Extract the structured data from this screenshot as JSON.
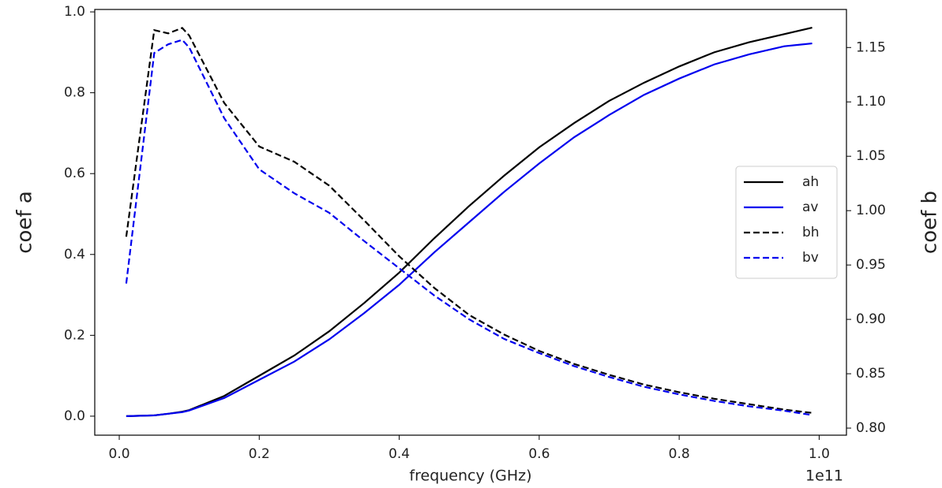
{
  "chart_data": {
    "type": "line",
    "x_label": "frequency (GHz)",
    "x_offset_label": "1e11",
    "y_label": "coef a",
    "y2_label": "coef b",
    "x": [
      0.01,
      0.05,
      0.07,
      0.09,
      0.1,
      0.15,
      0.2,
      0.25,
      0.3,
      0.35,
      0.4,
      0.45,
      0.5,
      0.55,
      0.6,
      0.65,
      0.7,
      0.75,
      0.8,
      0.85,
      0.9,
      0.95,
      0.99
    ],
    "series": [
      {
        "name": "ah",
        "color": "#000000",
        "style": "solid",
        "values": [
          0,
          0.002,
          0.006,
          0.011,
          0.015,
          0.05,
          0.1,
          0.15,
          0.21,
          0.28,
          0.355,
          0.44,
          0.52,
          0.595,
          0.665,
          0.725,
          0.78,
          0.825,
          0.865,
          0.9,
          0.925,
          0.945,
          0.961
        ]
      },
      {
        "name": "av",
        "color": "#0000ee",
        "style": "solid",
        "values": [
          0,
          0.002,
          0.006,
          0.01,
          0.014,
          0.045,
          0.09,
          0.135,
          0.19,
          0.255,
          0.325,
          0.405,
          0.48,
          0.555,
          0.625,
          0.69,
          0.745,
          0.795,
          0.835,
          0.87,
          0.895,
          0.915,
          0.922
        ]
      },
      {
        "name": "bh",
        "color": "#000000",
        "style": "dashed",
        "axis": "y2",
        "values": [
          0.976,
          1.166,
          1.163,
          1.168,
          1.161,
          1.099,
          1.059,
          1.045,
          1.023,
          0.991,
          0.958,
          0.929,
          0.904,
          0.886,
          0.871,
          0.859,
          0.849,
          0.84,
          0.833,
          0.827,
          0.822,
          0.817,
          0.814
        ]
      },
      {
        "name": "bv",
        "color": "#0000ee",
        "style": "dashed",
        "axis": "y2",
        "values": [
          0.933,
          1.145,
          1.153,
          1.157,
          1.15,
          1.085,
          1.038,
          1.016,
          0.998,
          0.972,
          0.947,
          0.922,
          0.9,
          0.882,
          0.869,
          0.857,
          0.847,
          0.838,
          0.831,
          0.825,
          0.82,
          0.816,
          0.812
        ]
      }
    ],
    "xlim": [
      -0.035,
      1.039
    ],
    "xticks": [
      {
        "value": 0,
        "label": "0.0"
      },
      {
        "value": 0.2,
        "label": "0.2"
      },
      {
        "value": 0.4,
        "label": "0.4"
      },
      {
        "value": 0.6,
        "label": "0.6"
      },
      {
        "value": 0.8,
        "label": "0.8"
      },
      {
        "value": 1,
        "label": "1.0"
      }
    ],
    "ylim": [
      -0.047,
      1.006
    ],
    "yticks": [
      {
        "value": 0,
        "label": "0.0"
      },
      {
        "value": 0.2,
        "label": "0.2"
      },
      {
        "value": 0.4,
        "label": "0.4"
      },
      {
        "value": 0.6,
        "label": "0.6"
      },
      {
        "value": 0.8,
        "label": "0.8"
      },
      {
        "value": 1,
        "label": "1.0"
      }
    ],
    "y2lim": [
      0.7935,
      1.185
    ],
    "y2ticks": [
      {
        "value": 0.8,
        "label": "0.80"
      },
      {
        "value": 0.85,
        "label": "0.85"
      },
      {
        "value": 0.9,
        "label": "0.90"
      },
      {
        "value": 0.95,
        "label": "0.95"
      },
      {
        "value": 1,
        "label": "1.00"
      },
      {
        "value": 1.05,
        "label": "1.05"
      },
      {
        "value": 1.1,
        "label": "1.10"
      },
      {
        "value": 1.15,
        "label": "1.15"
      }
    ],
    "grid": false,
    "legend": "center right"
  }
}
